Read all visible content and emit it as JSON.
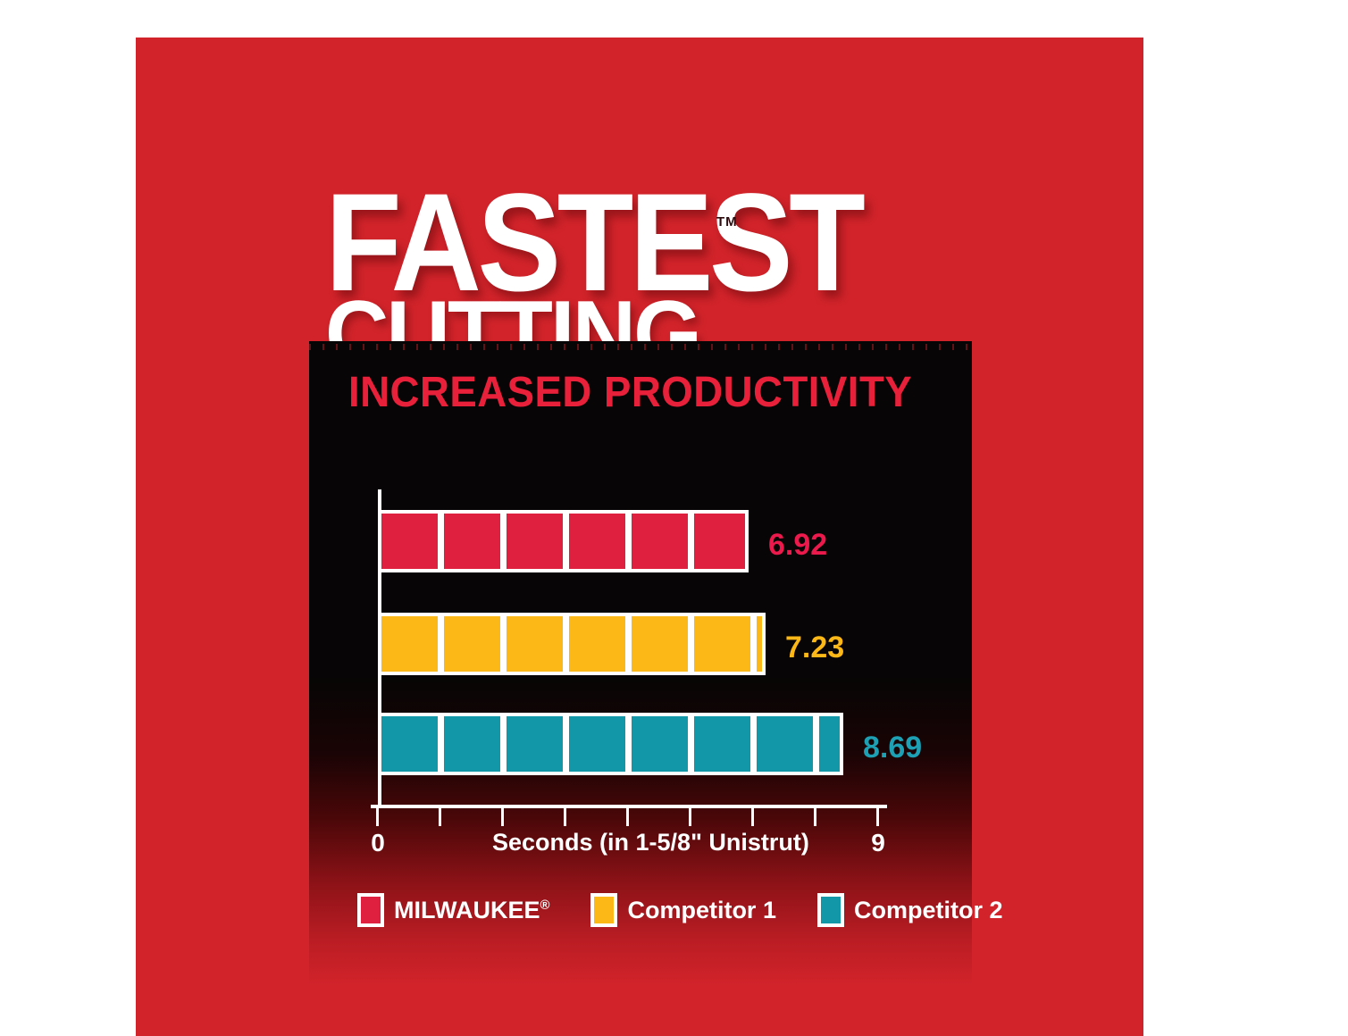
{
  "header": {
    "title_line1": "FASTEST",
    "trademark": "TM",
    "title_line2": "CUTTING"
  },
  "chart_data": {
    "type": "bar",
    "orientation": "horizontal",
    "title": "INCREASED PRODUCTIVITY",
    "categories": [
      "MILWAUKEE",
      "Competitor 1",
      "Competitor 2"
    ],
    "values": [
      6.92,
      7.23,
      8.69
    ],
    "value_labels": [
      "6.92",
      "7.23",
      "8.69"
    ],
    "bar_colors": [
      "#e0203f",
      "#fbb817",
      "#1297a8"
    ],
    "value_label_colors": [
      "#ec1a4c",
      "#fcb817",
      "#1da0b4"
    ],
    "xlabel": "Seconds (in 1-5/8\" Unistrut)",
    "xlim": [
      0,
      9
    ],
    "x_tick_labels": [
      "0",
      "9"
    ],
    "x_tick_count": 9,
    "grid": false,
    "legend_position": "bottom",
    "legend": [
      {
        "label": "MILWAUKEE",
        "suffix": "®",
        "color": "#e0203f"
      },
      {
        "label": "Competitor 1",
        "suffix": "",
        "color": "#fbb817"
      },
      {
        "label": "Competitor 2",
        "suffix": "",
        "color": "#1297a8"
      }
    ]
  },
  "colors": {
    "canvas_red": "#d2232a",
    "panel_black": "#070505",
    "heading_red": "#e8203a",
    "axis_white": "#ffffff",
    "title_white": "#ffffff"
  }
}
